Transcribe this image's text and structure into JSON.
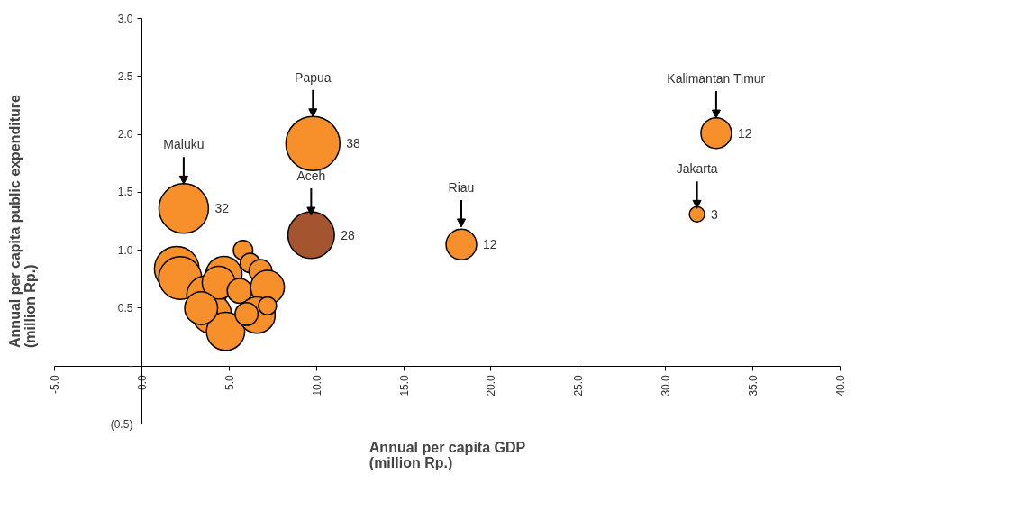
{
  "chart_data": {
    "type": "bubble",
    "xlabel": "Annual per capita GDP\n(million Rp.)",
    "ylabel": "Annual per capita public expenditure\n(million Rp.)",
    "x": [
      9.8,
      2.4,
      9.7,
      18.3,
      32.9,
      31.8,
      2.0,
      2.2,
      3.7,
      4.0,
      4.8,
      4.7,
      4.4,
      5.6,
      5.8,
      6.2,
      6.8,
      7.2,
      6.6,
      6.0,
      7.2,
      3.4
    ],
    "values": [
      1.92,
      1.36,
      1.13,
      1.05,
      2.01,
      1.31,
      0.84,
      0.76,
      0.61,
      0.45,
      0.3,
      0.79,
      0.72,
      0.65,
      1.0,
      0.89,
      0.82,
      0.68,
      0.44,
      0.45,
      0.52,
      0.5
    ],
    "sizes": [
      1,
      0.84,
      0.74,
      0.32,
      0.32,
      0.08,
      0.68,
      0.63,
      0.53,
      0.53,
      0.5,
      0.45,
      0.37,
      0.21,
      0.13,
      0.13,
      0.18,
      0.39,
      0.45,
      0.18,
      0.11,
      0.37
    ],
    "colors": [
      "#f7902a",
      "#f7902a",
      "#a4552f",
      "#f7902a",
      "#f7902a",
      "#f7902a",
      "#f7902a",
      "#f7902a",
      "#f7902a",
      "#f7902a",
      "#f7902a",
      "#f7902a",
      "#f7902a",
      "#f7902a",
      "#f7902a",
      "#f7902a",
      "#f7902a",
      "#f7902a",
      "#f7902a",
      "#f7902a",
      "#f7902a",
      "#f7902a"
    ],
    "annotations": [
      {
        "text": "Papua",
        "x": 9.8,
        "y": 2.15
      },
      {
        "text": "Maluku",
        "x": 2.4,
        "y": 1.57
      },
      {
        "text": "Aceh",
        "x": 9.7,
        "y": 1.3
      },
      {
        "text": "Riau",
        "x": 18.3,
        "y": 1.2
      },
      {
        "text": "Kalimantan Timur",
        "x": 32.9,
        "y": 2.14
      },
      {
        "text": "Jakarta",
        "x": 31.8,
        "y": 1.36
      },
      {
        "text": "38",
        "x": 9.8,
        "y": 1.92
      },
      {
        "text": "32",
        "x": 2.4,
        "y": 1.36
      },
      {
        "text": "28",
        "x": 9.7,
        "y": 1.13
      },
      {
        "text": "12",
        "x": 18.3,
        "y": 1.05
      },
      {
        "text": "12",
        "x": 32.9,
        "y": 2.01
      },
      {
        "text": "3",
        "x": 31.8,
        "y": 1.31
      }
    ],
    "xlim": [
      -5,
      40
    ],
    "ylim": [
      -0.5,
      3.0
    ],
    "xticks": [
      {
        "value": -5,
        "label": "-5.0"
      },
      {
        "value": 0,
        "label": "0.0"
      },
      {
        "value": 5,
        "label": "5.0"
      },
      {
        "value": 10,
        "label": "10.0"
      },
      {
        "value": 15,
        "label": "15.0"
      },
      {
        "value": 20,
        "label": "20.0"
      },
      {
        "value": 25,
        "label": "25.0"
      },
      {
        "value": 30,
        "label": "30.0"
      },
      {
        "value": 35,
        "label": "35.0"
      },
      {
        "value": 40,
        "label": "40.0"
      }
    ],
    "yticks": [
      {
        "value": -0.5,
        "label": "(0.5)"
      },
      {
        "value": 0,
        "label": "-"
      },
      {
        "value": 0.5,
        "label": "0.5"
      },
      {
        "value": 1.0,
        "label": "1.0"
      },
      {
        "value": 1.5,
        "label": "1.5"
      },
      {
        "value": 2.0,
        "label": "2.0"
      },
      {
        "value": 2.5,
        "label": "2.5"
      },
      {
        "value": 3.0,
        "label": "3.0"
      }
    ],
    "grid": false,
    "marker": "circle"
  }
}
